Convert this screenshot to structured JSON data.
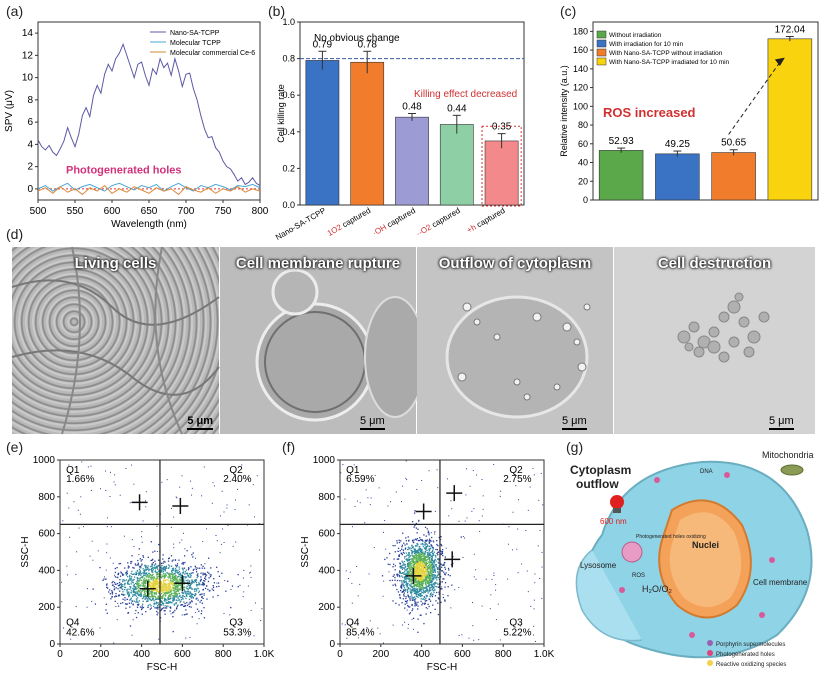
{
  "panels": {
    "a": "(a)",
    "b": "(b)",
    "c": "(c)",
    "d": "(d)",
    "e": "(e)",
    "f": "(f)",
    "g": "(g)"
  },
  "chart_data": [
    {
      "panel": "a",
      "type": "line",
      "xlabel": "Wavelength (nm)",
      "ylabel": "SPV (μV)",
      "xlim": [
        500,
        800
      ],
      "ylim": [
        -1,
        15
      ],
      "xticks": [
        500,
        550,
        600,
        650,
        700,
        750,
        800
      ],
      "yticks": [
        0,
        2,
        4,
        6,
        8,
        10,
        12,
        14
      ],
      "annotation": "Photogenerated holes",
      "legend_position": "top-right",
      "series": [
        {
          "name": "Nano-SA-TCPP",
          "color": "#5b5aa5",
          "x": [
            500,
            505,
            510,
            515,
            520,
            525,
            530,
            535,
            540,
            545,
            550,
            555,
            560,
            565,
            570,
            575,
            580,
            585,
            590,
            595,
            600,
            605,
            610,
            615,
            620,
            625,
            630,
            635,
            640,
            645,
            650,
            655,
            660,
            665,
            670,
            675,
            680,
            685,
            690,
            695,
            700,
            705,
            710,
            715,
            720,
            725,
            730,
            735,
            740,
            745,
            750,
            755,
            760,
            765,
            770,
            775,
            780,
            785,
            790,
            795,
            800
          ],
          "y": [
            4.4,
            3.8,
            3.5,
            3.9,
            3.3,
            3.0,
            3.6,
            4.3,
            5.5,
            4.6,
            3.8,
            4.9,
            6.6,
            7.3,
            6.5,
            8.4,
            9.3,
            8.6,
            10.3,
            11.2,
            10.6,
            11.7,
            12.2,
            13.0,
            12.0,
            11.0,
            10.0,
            11.2,
            11.4,
            10.2,
            9.3,
            10.8,
            10.3,
            11.7,
            10.9,
            11.3,
            10.2,
            11.7,
            10.6,
            9.2,
            10.3,
            10.4,
            9.0,
            8.0,
            6.6,
            5.4,
            4.6,
            4.7,
            3.7,
            3.3,
            2.5,
            2.0,
            1.8,
            1.3,
            0.7,
            1.0,
            0.4,
            0.6,
            1.0,
            0.5,
            0.3
          ]
        },
        {
          "name": "Molecular TCPP",
          "color": "#4aa7d6",
          "x": [
            500,
            510,
            520,
            530,
            540,
            550,
            560,
            570,
            580,
            590,
            600,
            610,
            620,
            630,
            640,
            650,
            660,
            670,
            680,
            690,
            700,
            710,
            720,
            730,
            740,
            750,
            760,
            770,
            780,
            790,
            800
          ],
          "y": [
            0.0,
            0.3,
            -0.2,
            0.2,
            0.5,
            -0.1,
            0.2,
            0.4,
            0.1,
            -0.2,
            0.3,
            0.5,
            0.2,
            -0.1,
            0.3,
            0.1,
            0.4,
            -0.2,
            0.2,
            0.5,
            0.1,
            -0.2,
            0.3,
            0.1,
            0.4,
            0.2,
            -0.1,
            0.3,
            0.2,
            0.4,
            0.1
          ]
        },
        {
          "name": "Molecular commercial Ce-6",
          "color": "#d98a3a",
          "x": [
            500,
            510,
            520,
            530,
            540,
            550,
            560,
            570,
            580,
            590,
            600,
            610,
            620,
            630,
            640,
            650,
            660,
            670,
            680,
            690,
            700,
            710,
            720,
            730,
            740,
            750,
            760,
            770,
            780,
            790,
            800
          ],
          "y": [
            -0.2,
            0.1,
            -0.4,
            0.2,
            -0.3,
            0.0,
            -0.5,
            0.1,
            -0.2,
            0.3,
            -0.4,
            0.0,
            -0.3,
            0.2,
            -0.1,
            -0.4,
            0.1,
            -0.2,
            0.0,
            -0.5,
            0.2,
            -0.1,
            -0.3,
            0.1,
            -0.4,
            0.0,
            -0.2,
            0.2,
            -0.3,
            0.0,
            -0.2
          ]
        }
      ]
    },
    {
      "panel": "b",
      "type": "bar",
      "ylabel": "Cell killing rate",
      "ylim": [
        0,
        1.0
      ],
      "yticks": [
        "0.0",
        "0.2",
        "0.4",
        "0.6",
        "0.8",
        "1.0"
      ],
      "reference_line": 0.8,
      "annotation_top": "No obvious change",
      "annotation_mid": "Killing effect decreased",
      "categories": [
        {
          "main": "Nano-SA-TCPP",
          "sup": "",
          "pre": "",
          "post": ""
        },
        {
          "main": "captured",
          "sup": "1",
          "pre": "O",
          "post": "2"
        },
        {
          "main": "captured",
          "sup": "",
          "pre": "·OH",
          "post": ""
        },
        {
          "main": "captured",
          "sup": "·-",
          "pre": "O",
          "post": "2"
        },
        {
          "main": "captured",
          "sup": "+",
          "pre": "h",
          "post": ""
        }
      ],
      "values": [
        0.79,
        0.78,
        0.48,
        0.44,
        0.35
      ],
      "value_labels": [
        "0.79",
        "0.78",
        "0.48",
        "0.44",
        "0.35"
      ],
      "errors": [
        0.05,
        0.06,
        0.02,
        0.05,
        0.04
      ],
      "colors": [
        "#3a72c4",
        "#f07c2c",
        "#9c9bd3",
        "#8ecfa6",
        "#f4898b"
      ]
    },
    {
      "panel": "c",
      "type": "bar",
      "ylabel": "Relative intensity (a.u.)",
      "ylim": [
        0,
        190
      ],
      "yticks": [
        0,
        20,
        40,
        60,
        80,
        100,
        120,
        140,
        160,
        180
      ],
      "annotation": "ROS increased",
      "legend_position": "top-left",
      "categories": [
        "Without irradiation",
        "With irradiation for 10 min",
        "With Nano-SA-TCPP without irradiation",
        "With Nano-SA-TCPP irradiated for 10 min"
      ],
      "values": [
        52.93,
        49.25,
        50.65,
        172.04
      ],
      "value_labels": [
        "52.93",
        "49.25",
        "50.65",
        "172.04"
      ],
      "errors": [
        2.5,
        3.0,
        3.0,
        2.5
      ],
      "colors": [
        "#5aa84a",
        "#3a72c4",
        "#f07c2c",
        "#f8d30e"
      ]
    },
    {
      "panel": "e",
      "type": "scatter",
      "xlabel": "FSC-H",
      "ylabel": "SSC-H",
      "xlim": [
        0,
        1000
      ],
      "ylim": [
        0,
        1000
      ],
      "xticks": [
        "0",
        "200",
        "400",
        "600",
        "800",
        "1.0K"
      ],
      "yticks": [
        "0",
        "200",
        "400",
        "600",
        "800",
        "1000"
      ],
      "gate": [
        490,
        650
      ],
      "quadrants": {
        "Q1": "1.66%",
        "Q2": "2.40%",
        "Q3": "53.3%",
        "Q4": "42.6%"
      },
      "cluster_center": [
        490,
        320
      ]
    },
    {
      "panel": "f",
      "type": "scatter",
      "xlabel": "FSC-H",
      "ylabel": "SSC-H",
      "xlim": [
        0,
        1000
      ],
      "ylim": [
        0,
        1000
      ],
      "xticks": [
        "0",
        "200",
        "400",
        "600",
        "800",
        "1.0K"
      ],
      "yticks": [
        "0",
        "200",
        "400",
        "600",
        "800",
        "1000"
      ],
      "gate": [
        490,
        650
      ],
      "quadrants": {
        "Q1": "6.59%",
        "Q2": "2.75%",
        "Q3": "5.22%",
        "Q4": "85.4%"
      },
      "cluster_center": [
        390,
        400
      ]
    }
  ],
  "microscopy": [
    {
      "title": "Living cells",
      "scale": "5 μm"
    },
    {
      "title": "Cell membrane rupture",
      "scale": "5 μm"
    },
    {
      "title": "Outflow of cytoplasm",
      "scale": "5 μm"
    },
    {
      "title": "Cell destruction",
      "scale": "5 μm"
    }
  ],
  "schematic": {
    "title_line1": "Cytoplasm",
    "title_line2": "outflow",
    "light": "600 nm",
    "mitochondria": "Mitochondria",
    "dna": "DNA",
    "lysosome": "Lysosome",
    "nuclei": "Nuclei",
    "ros": "ROS",
    "h2o": "H₂O/O₂",
    "holes_oxidizing": "Photogenerated holes oxidizing",
    "membrane": "Cell membrane",
    "legend": [
      "Porphyrin supermolecules",
      "Photogenerated holes",
      "Reactive oxidizing species"
    ]
  }
}
